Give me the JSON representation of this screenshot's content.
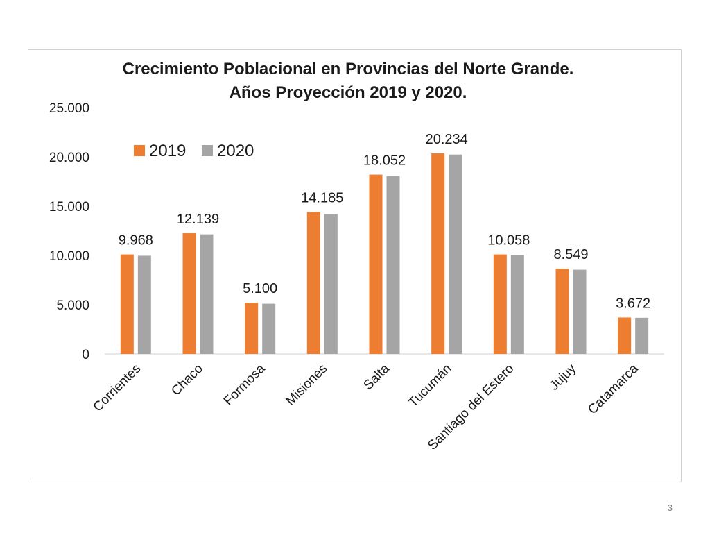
{
  "chart_data": {
    "type": "bar",
    "title_lines": [
      "Crecimiento Poblacional en Provincias del Norte Grande.",
      "Años Proyección 2019 y 2020."
    ],
    "categories": [
      "Corrientes",
      "Chaco",
      "Formosa",
      "Misiones",
      "Salta",
      "Tucumán",
      "Santiago del Estero",
      "Jujuy",
      "Catamarca"
    ],
    "series": [
      {
        "name": "2019",
        "color": "#ed7d31",
        "values": [
          10100,
          12250,
          5200,
          14400,
          18200,
          20350,
          10100,
          8650,
          3700
        ]
      },
      {
        "name": "2020",
        "color": "#a5a5a5",
        "values": [
          9968,
          12139,
          5100,
          14185,
          18052,
          20234,
          10058,
          8549,
          3672
        ]
      }
    ],
    "data_labels": [
      "9.968",
      "12.139",
      "5.100",
      "14.185",
      "18.052",
      "20.234",
      "10.058",
      "8.549",
      "3.672"
    ],
    "ylim": [
      0,
      25000
    ],
    "yticks": [
      0,
      5000,
      10000,
      15000,
      20000,
      25000
    ],
    "ytick_labels": [
      "0",
      "5.000",
      "10.000",
      "15.000",
      "20.000",
      "25.000"
    ],
    "legend_position": "top-left",
    "grid": false,
    "xlabel": "",
    "ylabel": ""
  },
  "page_number": "3"
}
